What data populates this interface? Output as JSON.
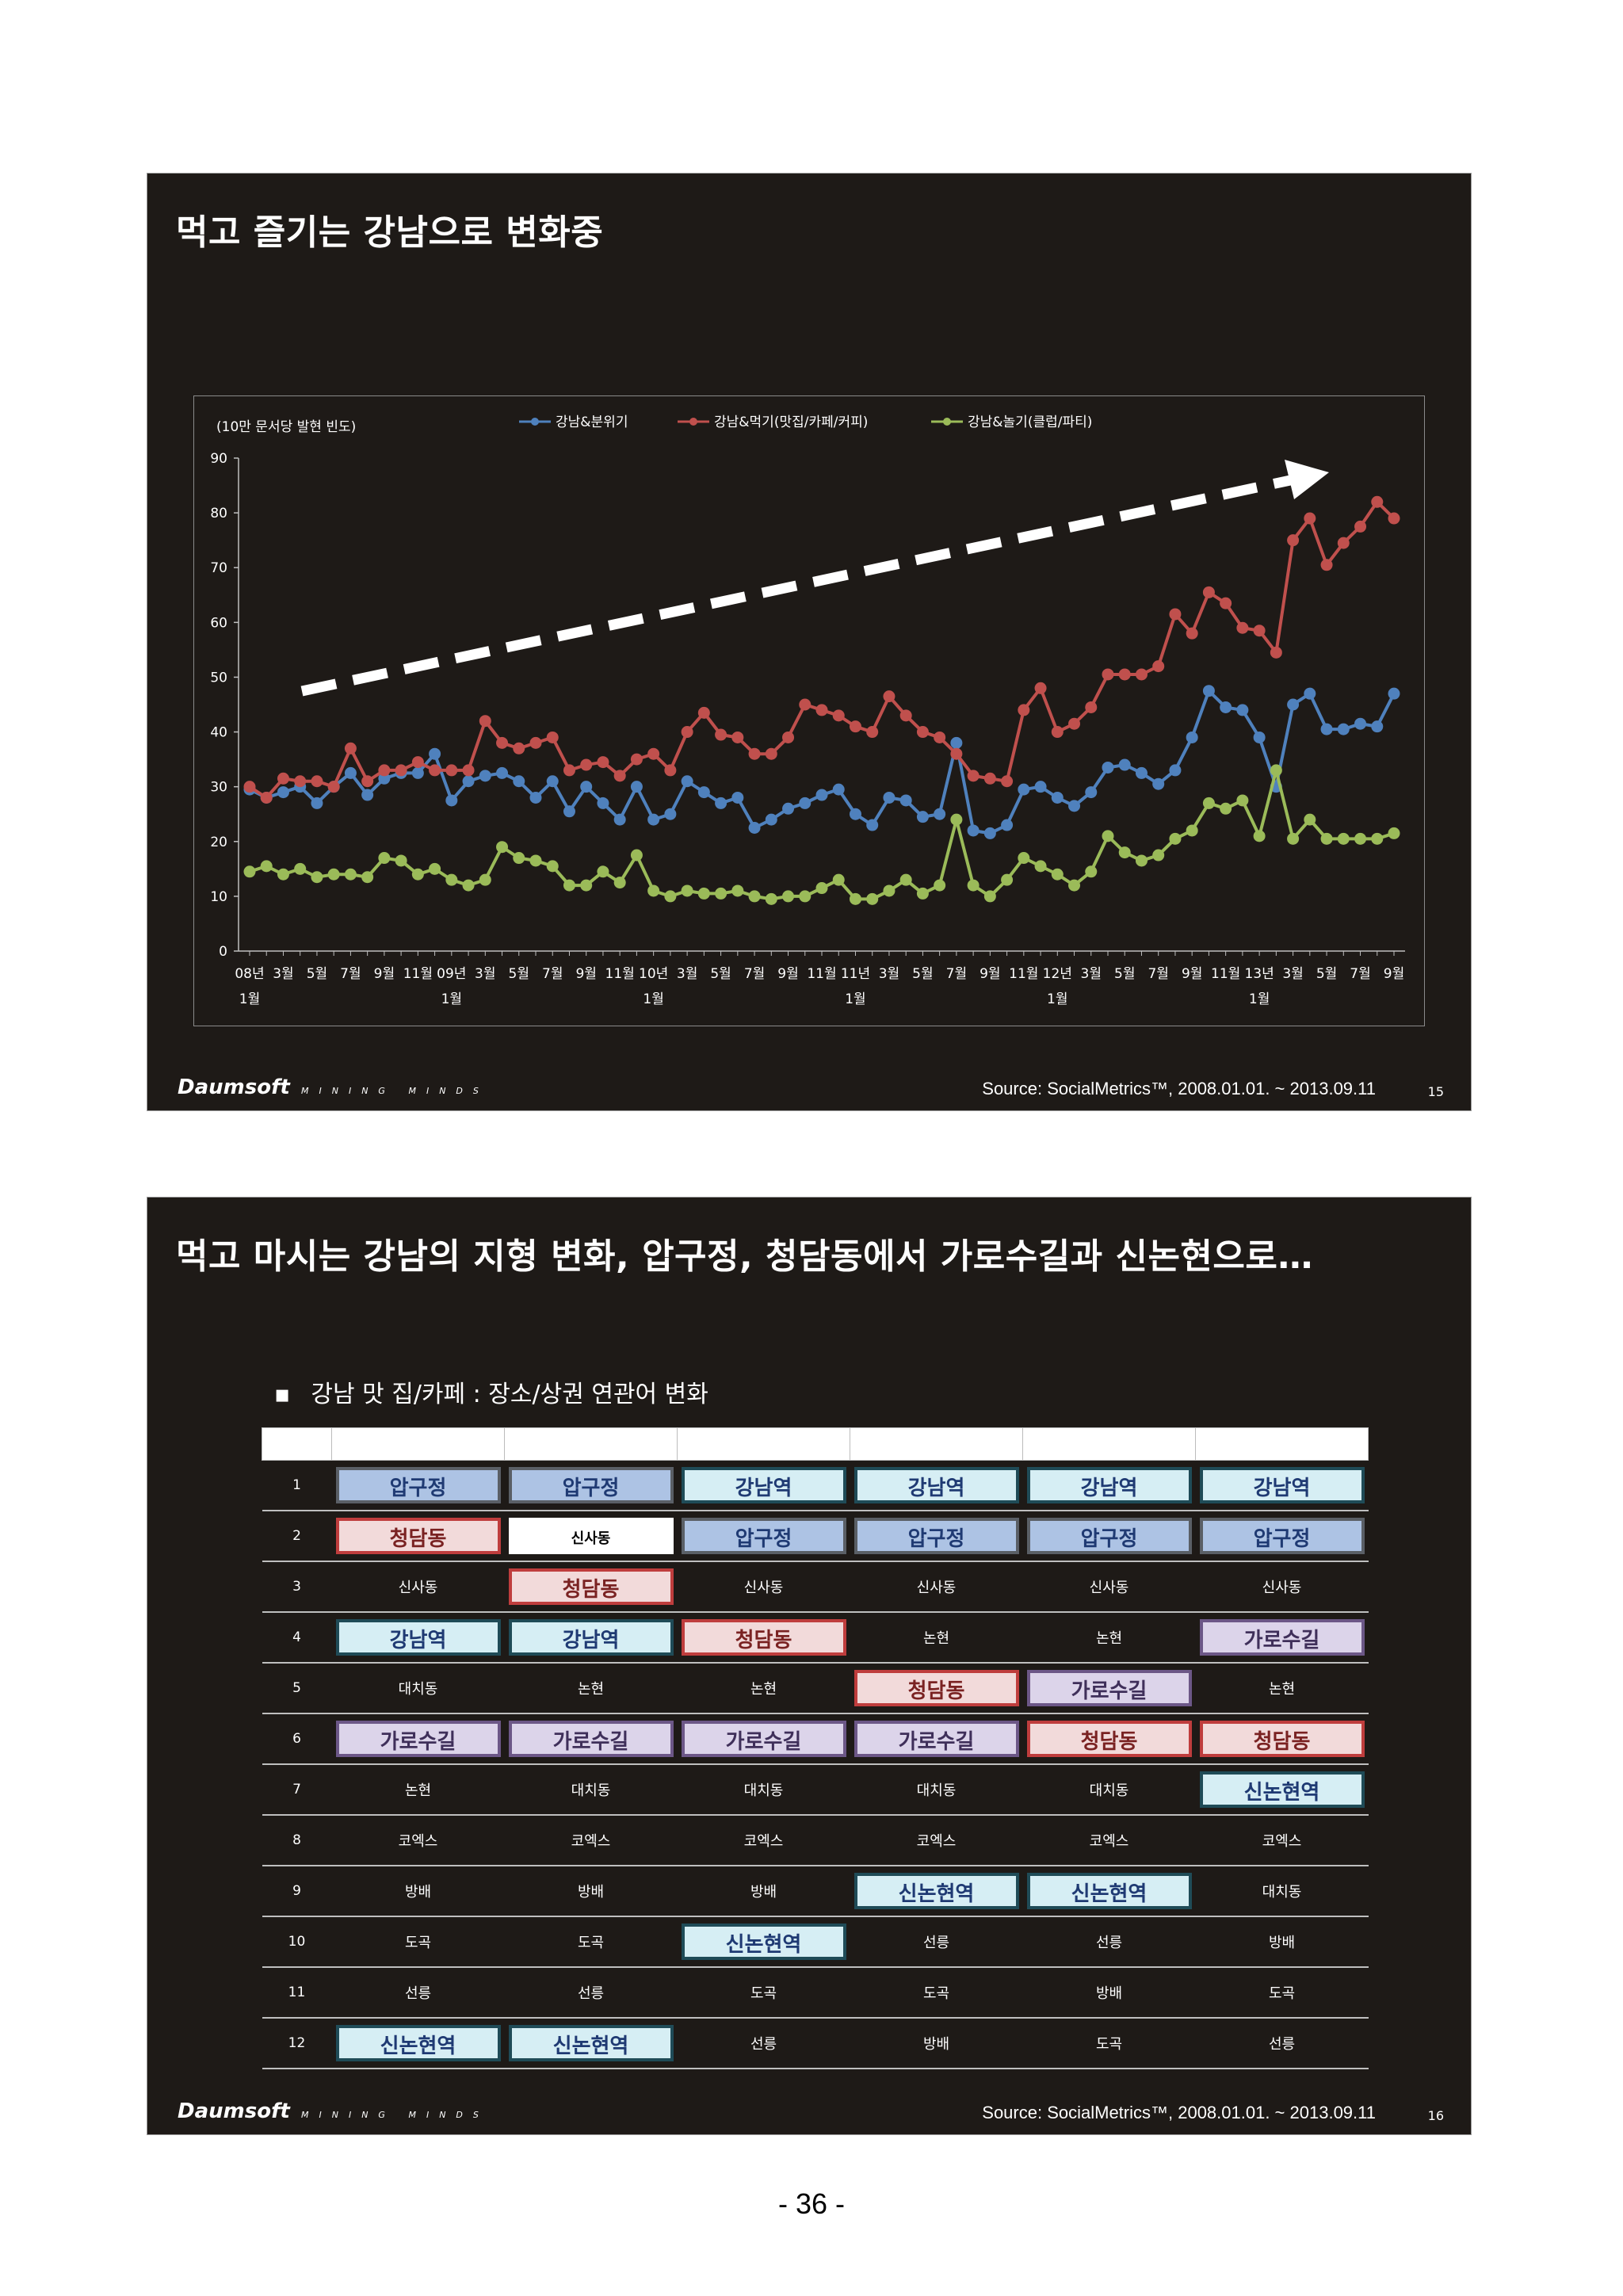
{
  "slide1": {
    "title": "먹고 즐기는 강남으로 변화중",
    "footer": {
      "logo": "Daumsoft",
      "tagline": "MINING MINDS",
      "source": "Source: SocialMetrics™, 2008.01.01. ~ 2013.09.11",
      "page": "15"
    }
  },
  "chart_data": {
    "type": "line",
    "ylabel": "(10만 문서당 발현 빈도)",
    "ylim": [
      0,
      90
    ],
    "yticks": [
      0,
      10,
      20,
      30,
      40,
      50,
      60,
      70,
      80,
      90
    ],
    "grid": false,
    "legend_position": "top",
    "x_tick_labels": [
      "08년 1월",
      "3월",
      "5월",
      "7월",
      "9월",
      "11월",
      "09년 1월",
      "3월",
      "5월",
      "7월",
      "9월",
      "11월",
      "10년 1월",
      "3월",
      "5월",
      "7월",
      "9월",
      "11월",
      "11년 1월",
      "3월",
      "5월",
      "7월",
      "9월",
      "11월",
      "12년 1월",
      "3월",
      "5월",
      "7월",
      "9월",
      "11월",
      "13년 1월",
      "3월",
      "5월",
      "7월",
      "9월"
    ],
    "x": [
      "2008-01",
      "2008-02",
      "2008-03",
      "2008-04",
      "2008-05",
      "2008-06",
      "2008-07",
      "2008-08",
      "2008-09",
      "2008-10",
      "2008-11",
      "2008-12",
      "2009-01",
      "2009-02",
      "2009-03",
      "2009-04",
      "2009-05",
      "2009-06",
      "2009-07",
      "2009-08",
      "2009-09",
      "2009-10",
      "2009-11",
      "2009-12",
      "2010-01",
      "2010-02",
      "2010-03",
      "2010-04",
      "2010-05",
      "2010-06",
      "2010-07",
      "2010-08",
      "2010-09",
      "2010-10",
      "2010-11",
      "2010-12",
      "2011-01",
      "2011-02",
      "2011-03",
      "2011-04",
      "2011-05",
      "2011-06",
      "2011-07",
      "2011-08",
      "2011-09",
      "2011-10",
      "2011-11",
      "2011-12",
      "2012-01",
      "2012-02",
      "2012-03",
      "2012-04",
      "2012-05",
      "2012-06",
      "2012-07",
      "2012-08",
      "2012-09",
      "2012-10",
      "2012-11",
      "2012-12",
      "2013-01",
      "2013-02",
      "2013-03",
      "2013-04",
      "2013-05",
      "2013-06",
      "2013-07",
      "2013-08",
      "2013-09"
    ],
    "series": [
      {
        "name": "강남&분위기",
        "color": "#4f81bd",
        "values": [
          29.5,
          28,
          29,
          30,
          27,
          30,
          32.5,
          28.5,
          31.5,
          32.5,
          32.5,
          36,
          27.5,
          31,
          32,
          32.5,
          31,
          28,
          31,
          25.5,
          30,
          27,
          24,
          30,
          24,
          25,
          31,
          29,
          27,
          28,
          22.5,
          24,
          26,
          27,
          28.5,
          29.5,
          25,
          23,
          28,
          27.5,
          24.5,
          25,
          38,
          22,
          21.5,
          23,
          29.5,
          30,
          28,
          26.5,
          29,
          33.5,
          34,
          32.5,
          30.5,
          33,
          39,
          47.5,
          44.5,
          44,
          39,
          30,
          45,
          47,
          40.5,
          40.5,
          41.5,
          41,
          47
        ]
      },
      {
        "name": "강남&먹기(맛집/카페/커피)",
        "color": "#c0504d",
        "values": [
          30,
          28,
          31.5,
          31,
          31,
          30,
          37,
          31,
          33,
          33,
          34.5,
          33,
          33,
          33,
          42,
          38,
          37,
          38,
          39,
          33,
          34,
          34.5,
          32,
          35,
          36,
          33,
          40,
          43.5,
          39.5,
          39,
          36,
          36,
          39,
          45,
          44,
          43,
          41,
          40,
          46.5,
          43,
          40,
          39,
          36,
          32,
          31.5,
          31,
          44,
          48,
          40,
          41.5,
          44.5,
          50.5,
          50.5,
          50.5,
          52,
          61.5,
          58,
          65.5,
          63.5,
          59,
          58.5,
          54.5,
          75,
          79,
          70.5,
          74.5,
          77.5,
          82,
          79
        ]
      },
      {
        "name": "강남&놀기(클럽/파티)",
        "color": "#9bbb59",
        "values": [
          14.5,
          15.5,
          14,
          15,
          13.5,
          14,
          14,
          13.5,
          17,
          16.5,
          14,
          15,
          13,
          12,
          13,
          19,
          17,
          16.5,
          15.5,
          12,
          12,
          14.5,
          12.5,
          17.5,
          11,
          10,
          11,
          10.5,
          10.5,
          11,
          10,
          9.5,
          10,
          10,
          11.5,
          13,
          9.5,
          9.5,
          11,
          13,
          10.5,
          12,
          24,
          12,
          10,
          13,
          17,
          15.5,
          14,
          12,
          14.5,
          21,
          18,
          16.5,
          17.5,
          20.5,
          22,
          27,
          26,
          27.5,
          21,
          33,
          20.5,
          24,
          20.5,
          20.5,
          20.5,
          20.5,
          21.5
        ]
      }
    ],
    "annotation": "trend-arrow"
  },
  "slide2": {
    "title": "먹고 마시는 강남의 지형 변화, 압구정, 청담동에서 가로수길과 신논현으로…",
    "subtitle": "강남 맛 집/카페 : 장소/상권 연관어 변화",
    "bullet": "▪",
    "footer": {
      "logo": "Daumsoft",
      "tagline": "MINING MINDS",
      "source": "Source: SocialMetrics™, 2008.01.01. ~ 2013.09.11",
      "page": "16"
    },
    "table": {
      "rows": [
        {
          "rank": "1",
          "cells": [
            {
              "text": "압구정",
              "style": "blue"
            },
            {
              "text": "압구정",
              "style": "blue"
            },
            {
              "text": "강남역",
              "style": "cyan"
            },
            {
              "text": "강남역",
              "style": "cyan"
            },
            {
              "text": "강남역",
              "style": "cyan"
            },
            {
              "text": "강남역",
              "style": "cyan"
            }
          ]
        },
        {
          "rank": "2",
          "cells": [
            {
              "text": "청담동",
              "style": "red"
            },
            {
              "text": "신사동",
              "style": "white"
            },
            {
              "text": "압구정",
              "style": "blue"
            },
            {
              "text": "압구정",
              "style": "blue"
            },
            {
              "text": "압구정",
              "style": "blue"
            },
            {
              "text": "압구정",
              "style": "blue"
            }
          ]
        },
        {
          "rank": "3",
          "cells": [
            {
              "text": "신사동",
              "style": "plain"
            },
            {
              "text": "청담동",
              "style": "red"
            },
            {
              "text": "신사동",
              "style": "plain"
            },
            {
              "text": "신사동",
              "style": "plain"
            },
            {
              "text": "신사동",
              "style": "plain"
            },
            {
              "text": "신사동",
              "style": "plain"
            }
          ]
        },
        {
          "rank": "4",
          "cells": [
            {
              "text": "강남역",
              "style": "cyan"
            },
            {
              "text": "강남역",
              "style": "cyan"
            },
            {
              "text": "청담동",
              "style": "red"
            },
            {
              "text": "논현",
              "style": "plain"
            },
            {
              "text": "논현",
              "style": "plain"
            },
            {
              "text": "가로수길",
              "style": "purple"
            }
          ]
        },
        {
          "rank": "5",
          "cells": [
            {
              "text": "대치동",
              "style": "plain"
            },
            {
              "text": "논현",
              "style": "plain"
            },
            {
              "text": "논현",
              "style": "plain"
            },
            {
              "text": "청담동",
              "style": "red"
            },
            {
              "text": "가로수길",
              "style": "purple"
            },
            {
              "text": "논현",
              "style": "plain"
            }
          ]
        },
        {
          "rank": "6",
          "cells": [
            {
              "text": "가로수길",
              "style": "purple"
            },
            {
              "text": "가로수길",
              "style": "purple"
            },
            {
              "text": "가로수길",
              "style": "purple"
            },
            {
              "text": "가로수길",
              "style": "purple"
            },
            {
              "text": "청담동",
              "style": "red"
            },
            {
              "text": "청담동",
              "style": "red"
            }
          ]
        },
        {
          "rank": "7",
          "cells": [
            {
              "text": "논현",
              "style": "plain"
            },
            {
              "text": "대치동",
              "style": "plain"
            },
            {
              "text": "대치동",
              "style": "plain"
            },
            {
              "text": "대치동",
              "style": "plain"
            },
            {
              "text": "대치동",
              "style": "plain"
            },
            {
              "text": "신논현역",
              "style": "cyan"
            }
          ]
        },
        {
          "rank": "8",
          "cells": [
            {
              "text": "코엑스",
              "style": "plain"
            },
            {
              "text": "코엑스",
              "style": "plain"
            },
            {
              "text": "코엑스",
              "style": "plain"
            },
            {
              "text": "코엑스",
              "style": "plain"
            },
            {
              "text": "코엑스",
              "style": "plain"
            },
            {
              "text": "코엑스",
              "style": "plain"
            }
          ]
        },
        {
          "rank": "9",
          "cells": [
            {
              "text": "방배",
              "style": "plain"
            },
            {
              "text": "방배",
              "style": "plain"
            },
            {
              "text": "방배",
              "style": "plain"
            },
            {
              "text": "신논현역",
              "style": "cyan"
            },
            {
              "text": "신논현역",
              "style": "cyan"
            },
            {
              "text": "대치동",
              "style": "plain"
            }
          ]
        },
        {
          "rank": "10",
          "cells": [
            {
              "text": "도곡",
              "style": "plain"
            },
            {
              "text": "도곡",
              "style": "plain"
            },
            {
              "text": "신논현역",
              "style": "cyan"
            },
            {
              "text": "선릉",
              "style": "plain"
            },
            {
              "text": "선릉",
              "style": "plain"
            },
            {
              "text": "방배",
              "style": "plain"
            }
          ]
        },
        {
          "rank": "11",
          "cells": [
            {
              "text": "선릉",
              "style": "plain"
            },
            {
              "text": "선릉",
              "style": "plain"
            },
            {
              "text": "도곡",
              "style": "plain"
            },
            {
              "text": "도곡",
              "style": "plain"
            },
            {
              "text": "방배",
              "style": "plain"
            },
            {
              "text": "도곡",
              "style": "plain"
            }
          ]
        },
        {
          "rank": "12",
          "cells": [
            {
              "text": "신논현역",
              "style": "cyan"
            },
            {
              "text": "신논현역",
              "style": "cyan"
            },
            {
              "text": "선릉",
              "style": "plain"
            },
            {
              "text": "방배",
              "style": "plain"
            },
            {
              "text": "도곡",
              "style": "plain"
            },
            {
              "text": "선릉",
              "style": "plain"
            }
          ]
        }
      ]
    }
  },
  "page_number": "- 36 -"
}
